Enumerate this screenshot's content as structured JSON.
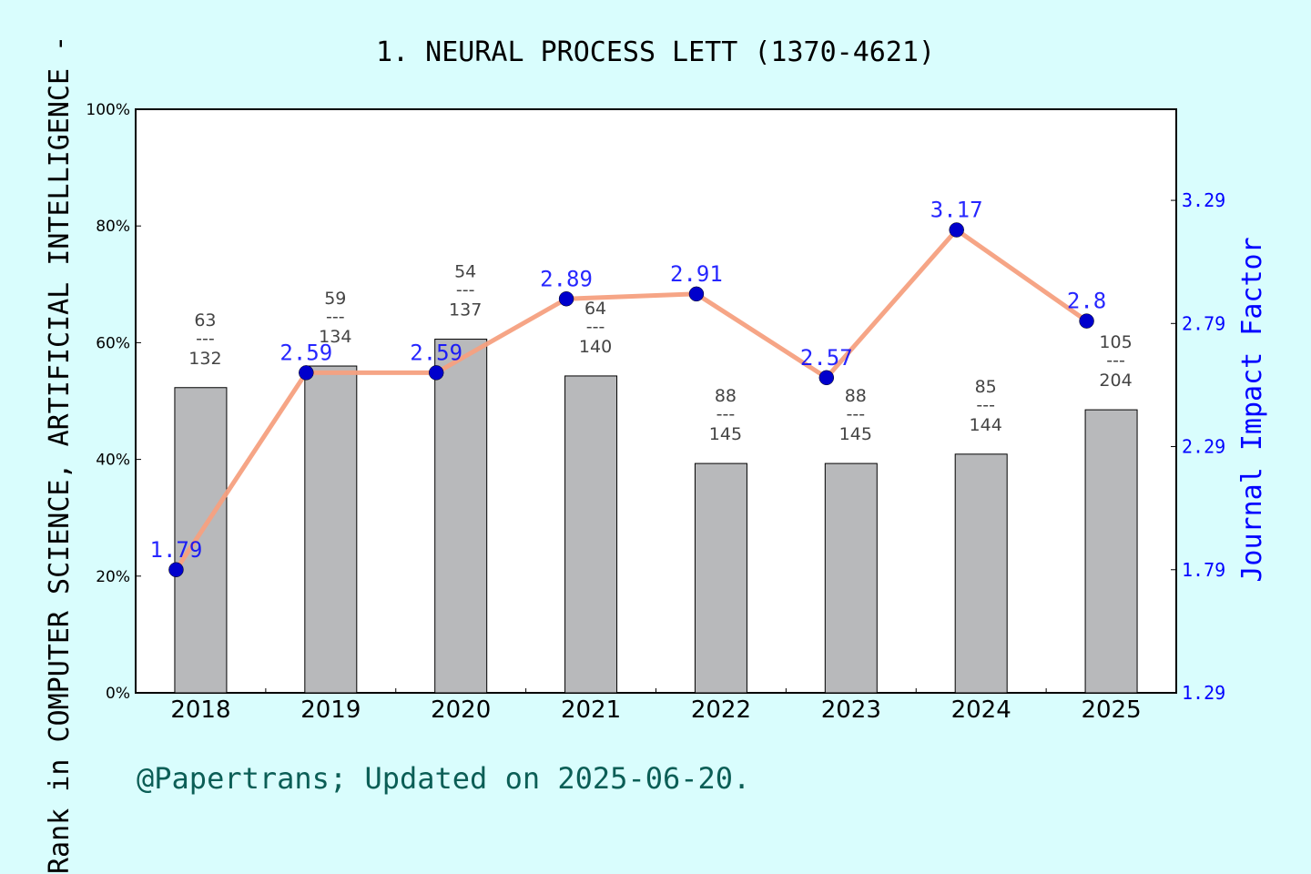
{
  "chart_data": {
    "type": "bar",
    "title": "1. NEURAL PROCESS LETT (1370-4621)",
    "footer": "@Papertrans; Updated on 2025-06-20.",
    "ylabel": "Rank in COMPUTER SCIENCE, ARTIFICIAL INTELLIGENCE -",
    "y2label": "Journal Impact Factor",
    "categories": [
      "2018",
      "2019",
      "2020",
      "2021",
      "2022",
      "2023",
      "2024",
      "2025"
    ],
    "ylim": [
      0,
      100
    ],
    "y_ticks": [
      "0%",
      "20%",
      "40%",
      "60%",
      "80%",
      "100%"
    ],
    "y2lim": [
      1.29,
      3.66
    ],
    "y2_ticks": [
      "1.29",
      "1.79",
      "2.29",
      "2.79",
      "3.29"
    ],
    "bars": {
      "values": [
        52.3,
        56.0,
        60.6,
        54.3,
        39.3,
        39.3,
        40.9,
        48.5
      ],
      "rank": [
        "63",
        "59",
        "54",
        "64",
        "88",
        "88",
        "85",
        "105"
      ],
      "total": [
        "132",
        "134",
        "137",
        "140",
        "145",
        "145",
        "144",
        "204"
      ],
      "label_sep": "---",
      "color": "#b8b9bb"
    },
    "series": [
      {
        "type": "line",
        "values": [
          1.79,
          2.59,
          2.59,
          2.89,
          2.91,
          2.57,
          3.17,
          2.8
        ],
        "labels": [
          "1.79",
          "2.59",
          "2.59",
          "2.89",
          "2.91",
          "2.57",
          "3.17",
          "2.8"
        ],
        "line_color": "#f5a07f",
        "marker_color": "#0000cc"
      }
    ],
    "grid": false,
    "colors": {
      "background": "#d9fdfd",
      "plot_bg": "#ffffff",
      "accent": "#0000ff",
      "footer": "#0b5e56"
    }
  }
}
